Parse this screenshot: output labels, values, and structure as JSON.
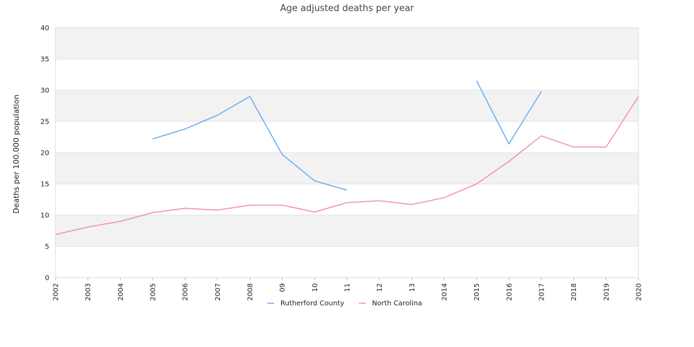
{
  "chart_data": {
    "type": "line",
    "title": "Age adjusted deaths per year",
    "ylabel": "Deaths per 100.000 population",
    "xlabel": "",
    "x": [
      "2002",
      "2003",
      "2004",
      "2005",
      "2006",
      "2007",
      "2008",
      "09",
      "10",
      "11",
      "12",
      "13",
      "2014",
      "2015",
      "2016",
      "2017",
      "2018",
      "2019",
      "2020"
    ],
    "ylim": [
      0,
      40
    ],
    "yticks": [
      0,
      5,
      10,
      15,
      20,
      25,
      30,
      35,
      40
    ],
    "grid": true,
    "legend_position": "bottom",
    "series": [
      {
        "name": "Rutherford County",
        "color": "#6aaef0",
        "values": [
          null,
          null,
          null,
          22.2,
          23.8,
          26.0,
          29.0,
          19.7,
          15.5,
          14.0,
          null,
          null,
          null,
          31.5,
          21.4,
          29.8,
          null,
          null,
          null
        ]
      },
      {
        "name": "North Carolina",
        "color": "#ef8fc0",
        "values": [
          6.9,
          8.1,
          9.0,
          10.4,
          11.1,
          10.8,
          11.6,
          11.6,
          10.5,
          12.0,
          12.3,
          11.7,
          12.8,
          15.0,
          18.6,
          22.7,
          20.9,
          20.9,
          29.0
        ]
      }
    ]
  }
}
